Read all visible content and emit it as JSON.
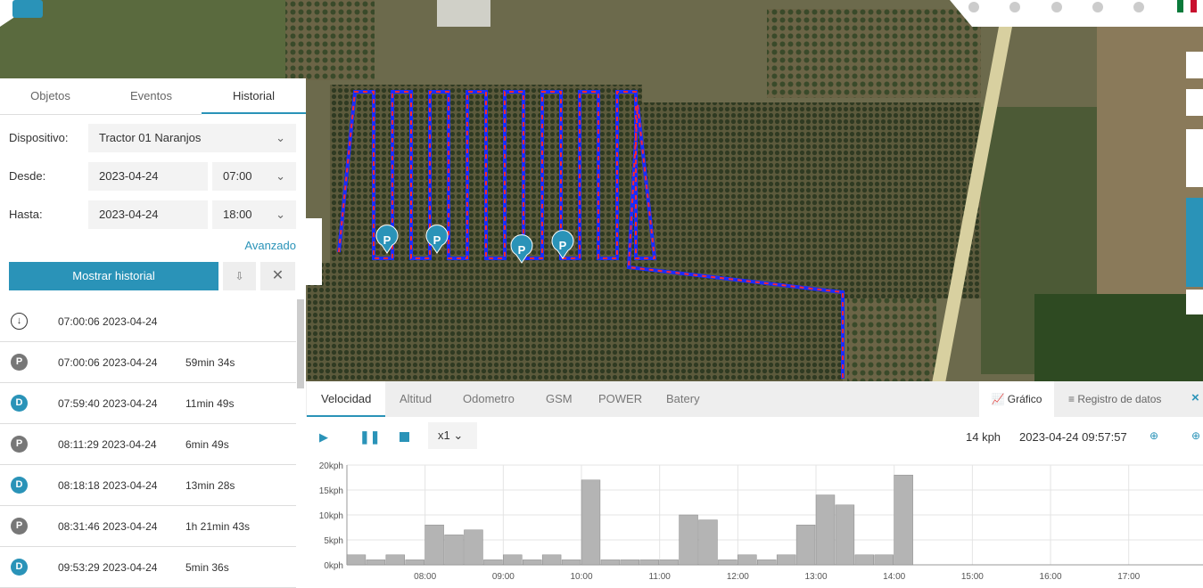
{
  "tabs": [
    "Objetos",
    "Eventos",
    "Historial"
  ],
  "form": {
    "device_label": "Dispositivo:",
    "device": "Tractor 01 Naranjos",
    "from_label": "Desde:",
    "from_date": "2023-04-24",
    "from_time": "07:00",
    "to_label": "Hasta:",
    "to_date": "2023-04-24",
    "to_time": "18:00",
    "advanced": "Avanzado",
    "show_button": "Mostrar historial"
  },
  "events": [
    {
      "badge": "",
      "time": "07:00:06 2023-04-24",
      "duration": ""
    },
    {
      "badge": "P",
      "time": "07:00:06 2023-04-24",
      "duration": "59min 34s"
    },
    {
      "badge": "D",
      "time": "07:59:40 2023-04-24",
      "duration": "11min 49s"
    },
    {
      "badge": "P",
      "time": "08:11:29 2023-04-24",
      "duration": "6min 49s"
    },
    {
      "badge": "D",
      "time": "08:18:18 2023-04-24",
      "duration": "13min 28s"
    },
    {
      "badge": "P",
      "time": "08:31:46 2023-04-24",
      "duration": "1h 21min 43s"
    },
    {
      "badge": "D",
      "time": "09:53:29 2023-04-24",
      "duration": "5min 36s"
    }
  ],
  "map": {
    "markers": [
      "P",
      "P",
      "P",
      "P"
    ]
  },
  "chart_tabs": [
    "Velocidad",
    "Altitud",
    "Odometro",
    "GSM",
    "POWER",
    "Batery"
  ],
  "view_buttons": [
    "Gráfico",
    "Registro de datos"
  ],
  "controls": {
    "speed_factor": "x1",
    "current_speed": "14 kph",
    "current_time": "2023-04-24 09:57:57"
  },
  "speed_chart": {
    "type": "bar",
    "color": "#b4b4b4",
    "x": [
      7,
      7.25,
      7.5,
      7.75,
      8,
      8.25,
      8.5,
      8.75,
      9,
      9.25,
      9.5,
      9.75,
      10,
      10.25,
      10.5,
      10.75,
      11,
      11.25,
      11.5,
      11.75,
      12,
      12.25,
      12.5,
      12.75,
      13,
      13.25,
      13.5,
      13.75,
      14
    ],
    "values": [
      2,
      1,
      2,
      1,
      8,
      6,
      7,
      1,
      2,
      1,
      2,
      1,
      17,
      1,
      1,
      1,
      1,
      10,
      9,
      1,
      2,
      1,
      2,
      8,
      14,
      12,
      2,
      2,
      18
    ],
    "xlim": [
      7,
      17.95
    ],
    "xticks": [
      {
        "value": 8,
        "label": "08:00"
      },
      {
        "value": 9,
        "label": "09:00"
      },
      {
        "value": 10,
        "label": "10:00"
      },
      {
        "value": 11,
        "label": "11:00"
      },
      {
        "value": 12,
        "label": "12:00"
      },
      {
        "value": 13,
        "label": "13:00"
      },
      {
        "value": 14,
        "label": "14:00"
      },
      {
        "value": 15,
        "label": "15:00"
      },
      {
        "value": 16,
        "label": "16:00"
      },
      {
        "value": 17,
        "label": "17:00"
      }
    ],
    "ylim": [
      0,
      20
    ],
    "yticks": [
      {
        "value": 0,
        "label": "0kph"
      },
      {
        "value": 5,
        "label": "5kph"
      },
      {
        "value": 10,
        "label": "10kph"
      },
      {
        "value": 15,
        "label": "15kph"
      },
      {
        "value": 20,
        "label": "20kph"
      }
    ],
    "grid": true
  }
}
